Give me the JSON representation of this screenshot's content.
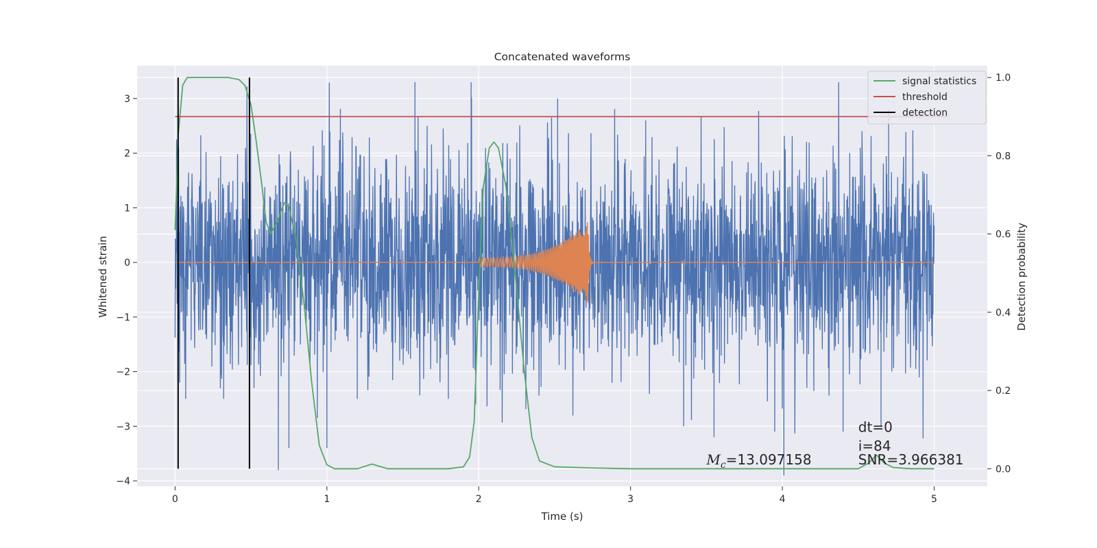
{
  "chart_data": {
    "type": "line",
    "title": "Concatenated waveforms",
    "xlabel": "Time (s)",
    "ylabel": "Whitened strain",
    "ylabel_right": "Detection probability",
    "xlim": [
      -0.25,
      5.35
    ],
    "ylim": [
      -4.1,
      3.6
    ],
    "ylim_right": [
      -0.045,
      1.03
    ],
    "x_ticks": [
      0,
      1,
      2,
      3,
      4,
      5
    ],
    "y_ticks": [
      -4,
      -3,
      -2,
      -1,
      0,
      1,
      2,
      3
    ],
    "y_ticks_right": [
      0.0,
      0.2,
      0.4,
      0.6,
      0.8,
      1.0
    ],
    "x_tick_labels": [
      "0",
      "1",
      "2",
      "3",
      "4",
      "5"
    ],
    "y_tick_labels": [
      "−4",
      "−3",
      "−2",
      "−1",
      "0",
      "1",
      "2",
      "3"
    ],
    "y_tick_labels_right": [
      "0.0",
      "0.2",
      "0.4",
      "0.6",
      "0.8",
      "1.0"
    ],
    "grid": true,
    "legend_position": "top-right",
    "series": [
      {
        "name": "",
        "axis": "left",
        "color": "#4c72b0",
        "kind": "noise",
        "x_range": [
          0,
          5
        ],
        "envelope_p95": 2.0,
        "peak_samples": [
          {
            "x": 0.03,
            "y": -2.2
          },
          {
            "x": 0.07,
            "y": -2.5
          },
          {
            "x": 0.32,
            "y": -2.5
          },
          {
            "x": 0.52,
            "y": -2.3
          },
          {
            "x": 0.68,
            "y": -3.8
          },
          {
            "x": 0.75,
            "y": -3.4
          },
          {
            "x": 1.0,
            "y": -3.4
          },
          {
            "x": 1.2,
            "y": -2.5
          },
          {
            "x": 1.58,
            "y": 3.3
          },
          {
            "x": 1.8,
            "y": -2.5
          },
          {
            "x": 1.95,
            "y": 3.3
          },
          {
            "x": 1.98,
            "y": -2.6
          },
          {
            "x": 2.52,
            "y": 3.0
          },
          {
            "x": 3.1,
            "y": 2.6
          },
          {
            "x": 3.35,
            "y": -3.0
          },
          {
            "x": 3.55,
            "y": -3.2
          },
          {
            "x": 3.95,
            "y": -3.1
          },
          {
            "x": 4.01,
            "y": -3.9
          },
          {
            "x": 4.4,
            "y": -3.1
          },
          {
            "x": 4.65,
            "y": -3.0
          },
          {
            "x": 4.7,
            "y": 2.8
          }
        ]
      },
      {
        "name": "",
        "axis": "left",
        "color": "#dd8452",
        "kind": "chirp",
        "x_range": [
          0,
          5
        ],
        "chirp_start": 2.0,
        "chirp_end": 2.72,
        "amplitude_start": 0.08,
        "amplitude_peak": 0.75
      },
      {
        "name": "signal statistics",
        "axis": "right",
        "color": "#55a868",
        "x": [
          0.0,
          0.02,
          0.05,
          0.08,
          0.12,
          0.2,
          0.35,
          0.42,
          0.46,
          0.5,
          0.53,
          0.57,
          0.6,
          0.63,
          0.67,
          0.72,
          0.75,
          0.8,
          0.85,
          0.9,
          0.95,
          1.0,
          1.05,
          1.2,
          1.28,
          1.3,
          1.33,
          1.4,
          1.6,
          1.8,
          1.9,
          1.94,
          1.97,
          2.0,
          2.03,
          2.07,
          2.1,
          2.13,
          2.18,
          2.24,
          2.3,
          2.35,
          2.4,
          2.5,
          2.75,
          3.0,
          4.5,
          4.57,
          4.62,
          4.67,
          4.73,
          4.85,
          5.0
        ],
        "y": [
          0.61,
          0.85,
          0.98,
          1.0,
          1.0,
          1.0,
          1.0,
          0.995,
          0.98,
          0.93,
          0.85,
          0.73,
          0.63,
          0.6,
          0.63,
          0.68,
          0.67,
          0.58,
          0.42,
          0.22,
          0.06,
          0.01,
          0.0,
          0.0,
          0.01,
          0.012,
          0.008,
          0.0,
          0.0,
          0.0,
          0.005,
          0.03,
          0.12,
          0.45,
          0.72,
          0.82,
          0.835,
          0.82,
          0.72,
          0.5,
          0.25,
          0.08,
          0.02,
          0.005,
          0.002,
          0.0,
          0.0,
          0.015,
          0.035,
          0.015,
          0.003,
          0.0,
          0.0
        ]
      },
      {
        "name": "threshold",
        "axis": "right",
        "color": "#c44e52",
        "x": [
          0.0,
          5.1
        ],
        "y": [
          0.9,
          0.9
        ]
      },
      {
        "name": "detection",
        "axis": "right",
        "color": "#000000",
        "kind": "vlines",
        "x": [
          0.02,
          0.49
        ],
        "y": [
          0.0,
          1.0
        ]
      }
    ],
    "annotations": [
      {
        "label": "M",
        "sub": "c",
        "text": "=13.097158",
        "x": 3.5,
        "y": -3.7
      },
      {
        "text": "dt=0",
        "x": 4.5,
        "y": -3.1
      },
      {
        "text": "i=84",
        "x": 4.5,
        "y": -3.45
      },
      {
        "text": "SNR=3.966381",
        "x": 4.5,
        "y": -3.7
      }
    ]
  }
}
